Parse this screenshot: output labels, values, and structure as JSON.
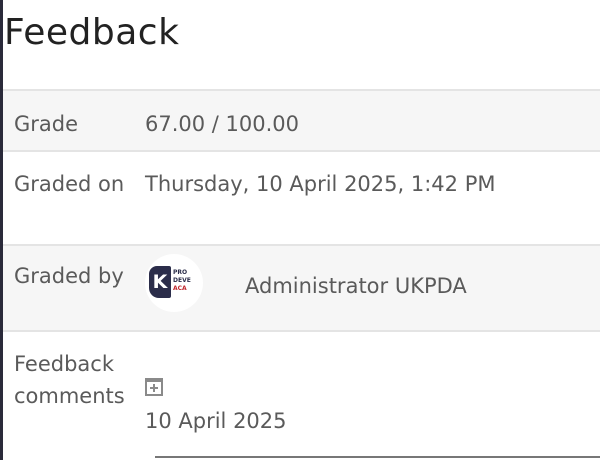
{
  "title": "Feedback",
  "rows": {
    "grade": {
      "label": "Grade",
      "value": "67.00 / 100.00"
    },
    "graded_on": {
      "label": "Graded on",
      "value": "Thursday, 10 April 2025, 1:42 PM"
    },
    "graded_by": {
      "label": "Graded by",
      "value": "Administrator UKPDA",
      "avatar_text": "UK PROFESSIONAL DEVELOPMENT ACADEMY"
    },
    "feedback_comments": {
      "label": "Feedback comments",
      "date": "10 April 2025",
      "icon": "expand-plus-icon"
    }
  }
}
